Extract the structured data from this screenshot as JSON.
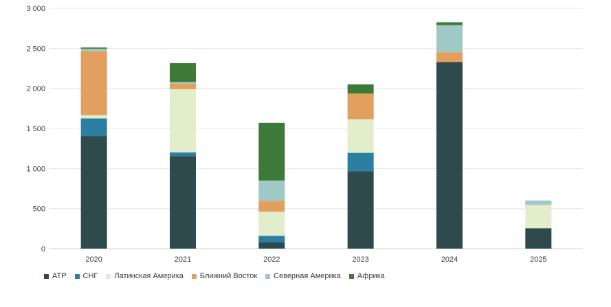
{
  "chart_data": {
    "type": "bar",
    "stacked": true,
    "title": "",
    "xlabel": "",
    "ylabel": "",
    "ylim": [
      0,
      3000
    ],
    "yticks": [
      0,
      500,
      1000,
      1500,
      2000,
      2500,
      3000
    ],
    "ytick_labels": [
      "0",
      "500",
      "1 000",
      "1 500",
      "2 000",
      "2 500",
      "3 000"
    ],
    "grid": true,
    "legend_position": "bottom-left",
    "categories": [
      "2020",
      "2021",
      "2022",
      "2023",
      "2024",
      "2025"
    ],
    "series": [
      {
        "name": "АТР",
        "color": "#2e4a4d",
        "values": [
          1405,
          1155,
          80,
          965,
          2330,
          255
        ]
      },
      {
        "name": "СНГ",
        "color": "#2b7fa3",
        "values": [
          220,
          45,
          80,
          230,
          0,
          0
        ]
      },
      {
        "name": "Латинская Америка",
        "color": "#e2edcc",
        "values": [
          40,
          790,
          300,
          420,
          0,
          290
        ]
      },
      {
        "name": "Ближний Восток",
        "color": "#e2a05e",
        "values": [
          800,
          70,
          135,
          320,
          120,
          0
        ]
      },
      {
        "name": "Северная Америка",
        "color": "#9fc8c6",
        "values": [
          30,
          20,
          255,
          0,
          340,
          55
        ]
      },
      {
        "name": "Африка",
        "color": "#3d7a38",
        "values": [
          15,
          235,
          720,
          115,
          35,
          0
        ]
      }
    ]
  }
}
